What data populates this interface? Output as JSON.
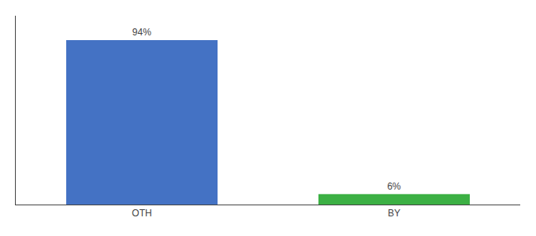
{
  "chart_data": {
    "type": "bar",
    "categories": [
      "OTH",
      "BY"
    ],
    "values": [
      94,
      6
    ],
    "value_labels": [
      "94%",
      "6%"
    ],
    "colors": [
      "#4472c4",
      "#3cb044"
    ],
    "ylim": [
      0,
      108
    ],
    "data_labels": true,
    "tick_labels": "x",
    "grid": false
  }
}
